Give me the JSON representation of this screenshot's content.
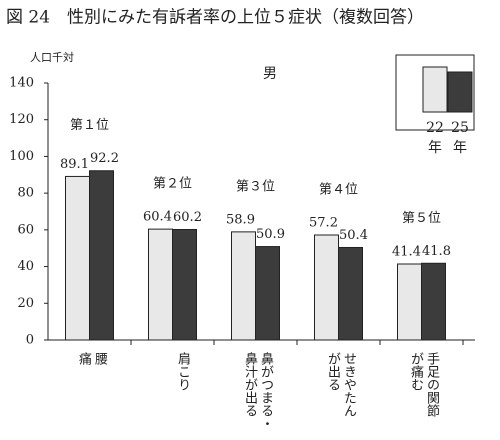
{
  "chart_data": {
    "type": "bar",
    "title": "図 24　性別にみた有訴者率の上位５症状（複数回答）",
    "subtitle": "男",
    "y_label": "人口千対",
    "categories": [
      [
        "腰",
        "痛"
      ],
      [
        "肩こり"
      ],
      [
        "鼻がつまる・",
        "鼻汁が出る"
      ],
      [
        "せきやたん",
        "が出る"
      ],
      [
        "手足の関節",
        "が痛む"
      ]
    ],
    "rank_labels": [
      "第１位",
      "第２位",
      "第３位",
      "第４位",
      "第５位"
    ],
    "series": [
      {
        "name": "22年",
        "color": "#e8e8e8",
        "values": [
          89.1,
          60.4,
          58.9,
          57.2,
          41.4
        ]
      },
      {
        "name": "25年",
        "color": "#3c3c3c",
        "values": [
          92.2,
          60.2,
          50.9,
          50.4,
          41.8
        ]
      }
    ],
    "ylim": [
      0,
      140
    ],
    "yticks": [
      0,
      20,
      40,
      60,
      80,
      100,
      120,
      140
    ],
    "grid": false
  }
}
